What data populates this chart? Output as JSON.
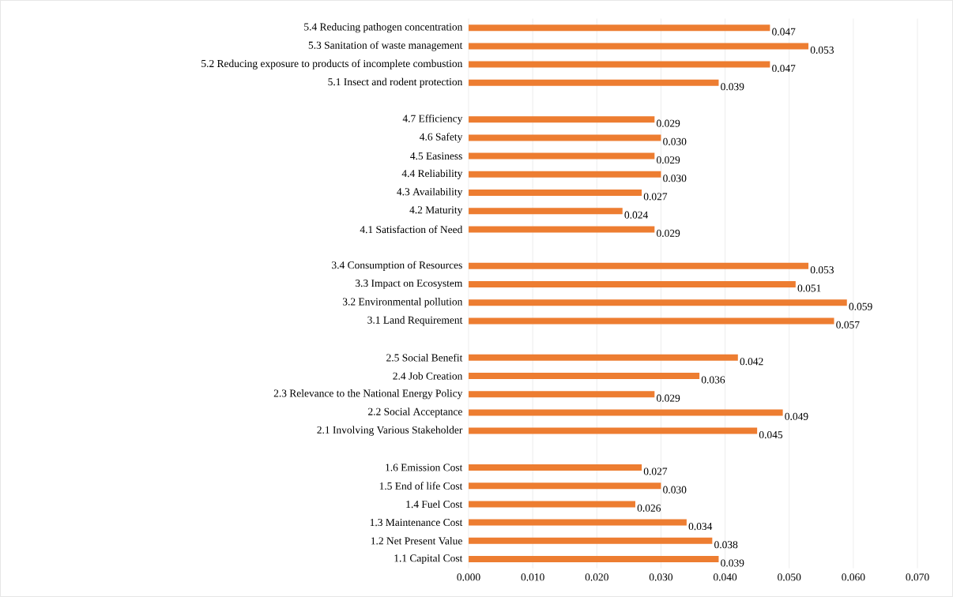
{
  "chart_data": {
    "type": "bar",
    "orientation": "horizontal",
    "categories": [
      "5.4 Reducing pathogen concentration",
      "5.3 Sanitation of waste management",
      "5.2 Reducing exposure to products of incomplete combustion",
      "5.1 Insect and rodent protection",
      null,
      "4.7 Efficiency",
      "4.6 Safety",
      "4.5 Easiness",
      "4.4 Reliability",
      "4.3 Availability",
      "4.2 Maturity",
      "4.1 Satisfaction of Need",
      null,
      "3.4 Consumption of Resources",
      "3.3 Impact on Ecosystem",
      "3.2 Environmental pollution",
      "3.1 Land Requirement",
      null,
      "2.5 Social  Benefit",
      "2.4 Job Creation",
      "2.3 Relevance to the National Energy Policy",
      "2.2 Social Acceptance",
      "2.1 Involving Various Stakeholder",
      null,
      "1.6 Emission Cost",
      "1.5 End of life Cost",
      "1.4 Fuel Cost",
      "1.3 Maintenance Cost",
      "1.2 Net Present Value",
      "1.1 Capital Cost"
    ],
    "values": [
      0.047,
      0.053,
      0.047,
      0.039,
      null,
      0.029,
      0.03,
      0.029,
      0.03,
      0.027,
      0.024,
      0.029,
      null,
      0.053,
      0.051,
      0.059,
      0.057,
      null,
      0.042,
      0.036,
      0.029,
      0.049,
      0.045,
      null,
      0.027,
      0.03,
      0.026,
      0.034,
      0.038,
      0.039
    ],
    "value_labels": [
      "0.047",
      "0.053",
      "0.047",
      "0.039",
      null,
      "0.029",
      "0.030",
      "0.029",
      "0.030",
      "0.027",
      "0.024",
      "0.029",
      null,
      "0.053",
      "0.051",
      "0.059",
      "0.057",
      null,
      "0.042",
      "0.036",
      "0.029",
      "0.049",
      "0.045",
      null,
      "0.027",
      "0.030",
      "0.026",
      "0.034",
      "0.038",
      "0.039"
    ],
    "color": "#ed7d31",
    "xlim": [
      0,
      0.07
    ],
    "xticks": [
      {
        "value": 0,
        "label": "0.000"
      },
      {
        "value": 0.01,
        "label": "0.010"
      },
      {
        "value": 0.02,
        "label": "0.020"
      },
      {
        "value": 0.03,
        "label": "0.030"
      },
      {
        "value": 0.04,
        "label": "0.040"
      },
      {
        "value": 0.05,
        "label": "0.050"
      },
      {
        "value": 0.06,
        "label": "0.060"
      },
      {
        "value": 0.07,
        "label": "0.070"
      }
    ],
    "grid": "x"
  }
}
